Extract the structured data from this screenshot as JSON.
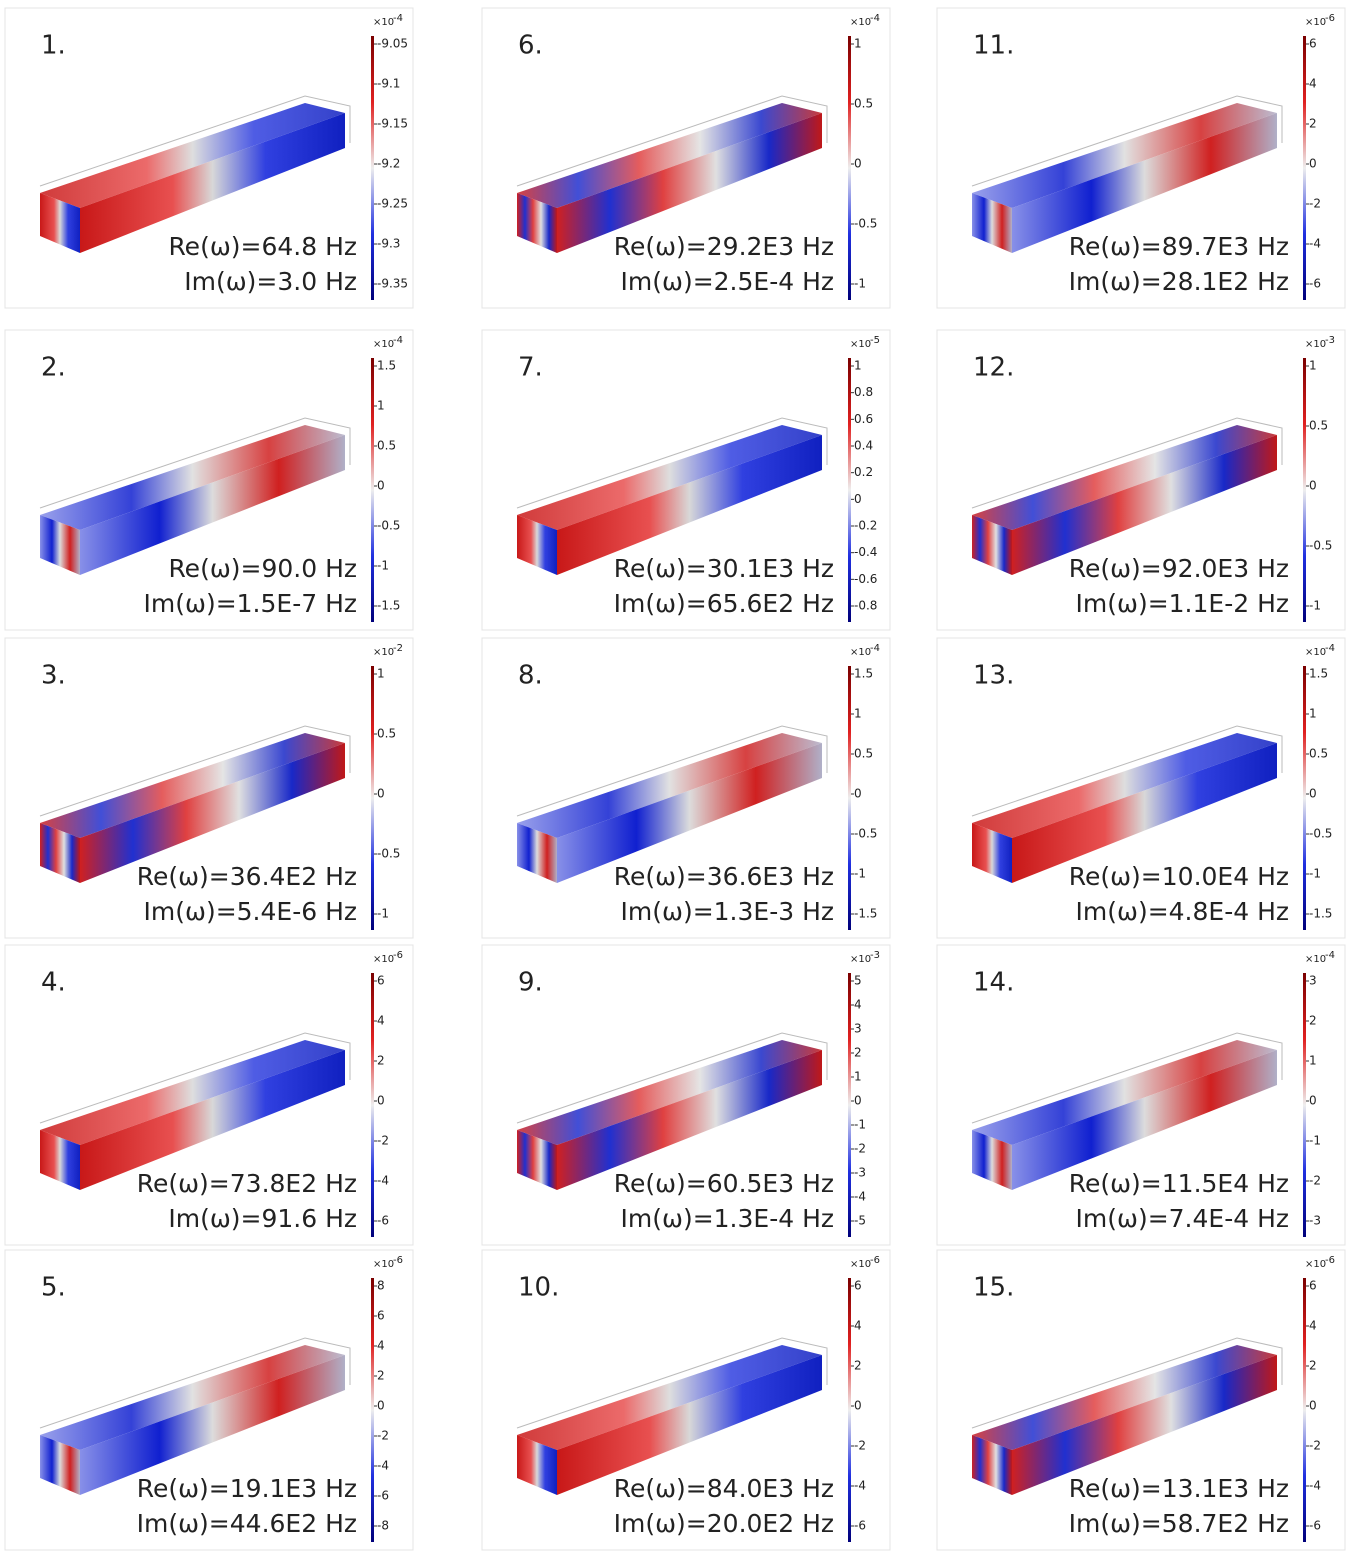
{
  "panels": [
    {
      "label": "1.",
      "re": "Re(ω)=64.8 Hz",
      "im": "Im(ω)=3.0 Hz",
      "scale_base": "×10",
      "scale_exp": "-4",
      "ticks": [
        -9.05,
        -9.1,
        -9.15,
        -9.2,
        -9.25,
        -9.3,
        -9.35
      ]
    },
    {
      "label": "2.",
      "re": "Re(ω)=90.0 Hz",
      "im": "Im(ω)=1.5E-7 Hz",
      "scale_base": "×10",
      "scale_exp": "-4",
      "ticks": [
        1.5,
        1,
        0.5,
        0,
        -0.5,
        -1,
        -1.5
      ]
    },
    {
      "label": "3.",
      "re": "Re(ω)=36.4E2 Hz",
      "im": "Im(ω)=5.4E-6 Hz",
      "scale_base": "×10",
      "scale_exp": "-2",
      "ticks": [
        1,
        0.5,
        0,
        -0.5,
        -1
      ]
    },
    {
      "label": "4.",
      "re": "Re(ω)=73.8E2 Hz",
      "im": "Im(ω)=91.6 Hz",
      "scale_base": "×10",
      "scale_exp": "-6",
      "ticks": [
        6,
        4,
        2,
        0,
        -2,
        -4,
        -6
      ]
    },
    {
      "label": "5.",
      "re": "Re(ω)=19.1E3 Hz",
      "im": "Im(ω)=44.6E2 Hz",
      "scale_base": "×10",
      "scale_exp": "-6",
      "ticks": [
        8,
        6,
        4,
        2,
        0,
        -2,
        -4,
        -6,
        -8
      ]
    },
    {
      "label": "6.",
      "re": "Re(ω)=29.2E3 Hz",
      "im": "Im(ω)=2.5E-4 Hz",
      "scale_base": "×10",
      "scale_exp": "-4",
      "ticks": [
        1,
        0.5,
        0,
        -0.5,
        -1
      ]
    },
    {
      "label": "7.",
      "re": "Re(ω)=30.1E3 Hz",
      "im": "Im(ω)=65.6E2 Hz",
      "scale_base": "×10",
      "scale_exp": "-5",
      "ticks": [
        1,
        0.8,
        0.6,
        0.4,
        0.2,
        0,
        -0.2,
        -0.4,
        -0.6,
        -0.8
      ]
    },
    {
      "label": "8.",
      "re": "Re(ω)=36.6E3 Hz",
      "im": "Im(ω)=1.3E-3 Hz",
      "scale_base": "×10",
      "scale_exp": "-4",
      "ticks": [
        1.5,
        1,
        0.5,
        0,
        -0.5,
        -1,
        -1.5
      ]
    },
    {
      "label": "9.",
      "re": "Re(ω)=60.5E3 Hz",
      "im": "Im(ω)=1.3E-4 Hz",
      "scale_base": "×10",
      "scale_exp": "-3",
      "ticks": [
        5,
        4,
        3,
        2,
        1,
        0,
        -1,
        -2,
        -3,
        -4,
        -5
      ]
    },
    {
      "label": "10.",
      "re": "Re(ω)=84.0E3 Hz",
      "im": "Im(ω)=20.0E2 Hz",
      "scale_base": "×10",
      "scale_exp": "-6",
      "ticks": [
        6,
        4,
        2,
        0,
        -2,
        -4,
        -6
      ]
    },
    {
      "label": "11.",
      "re": "Re(ω)=89.7E3 Hz",
      "im": "Im(ω)=28.1E2 Hz",
      "scale_base": "×10",
      "scale_exp": "-6",
      "ticks": [
        6,
        4,
        2,
        0,
        -2,
        -4,
        -6
      ]
    },
    {
      "label": "12.",
      "re": "Re(ω)=92.0E3 Hz",
      "im": "Im(ω)=1.1E-2 Hz",
      "scale_base": "×10",
      "scale_exp": "-3",
      "ticks": [
        1,
        0.5,
        0,
        -0.5,
        -1
      ]
    },
    {
      "label": "13.",
      "re": "Re(ω)=10.0E4 Hz",
      "im": "Im(ω)=4.8E-4 Hz",
      "scale_base": "×10",
      "scale_exp": "-4",
      "ticks": [
        1.5,
        1,
        0.5,
        0,
        -0.5,
        -1,
        -1.5
      ]
    },
    {
      "label": "14.",
      "re": "Re(ω)=11.5E4 Hz",
      "im": "Im(ω)=7.4E-4 Hz",
      "scale_base": "×10",
      "scale_exp": "-4",
      "ticks": [
        3,
        2,
        1,
        0,
        -1,
        -2,
        -3
      ]
    },
    {
      "label": "15.",
      "re": "Re(ω)=13.1E3 Hz",
      "im": "Im(ω)=58.7E2 Hz",
      "scale_base": "×10",
      "scale_exp": "-6",
      "ticks": [
        6,
        4,
        2,
        0,
        -2,
        -4,
        -6
      ]
    }
  ]
}
